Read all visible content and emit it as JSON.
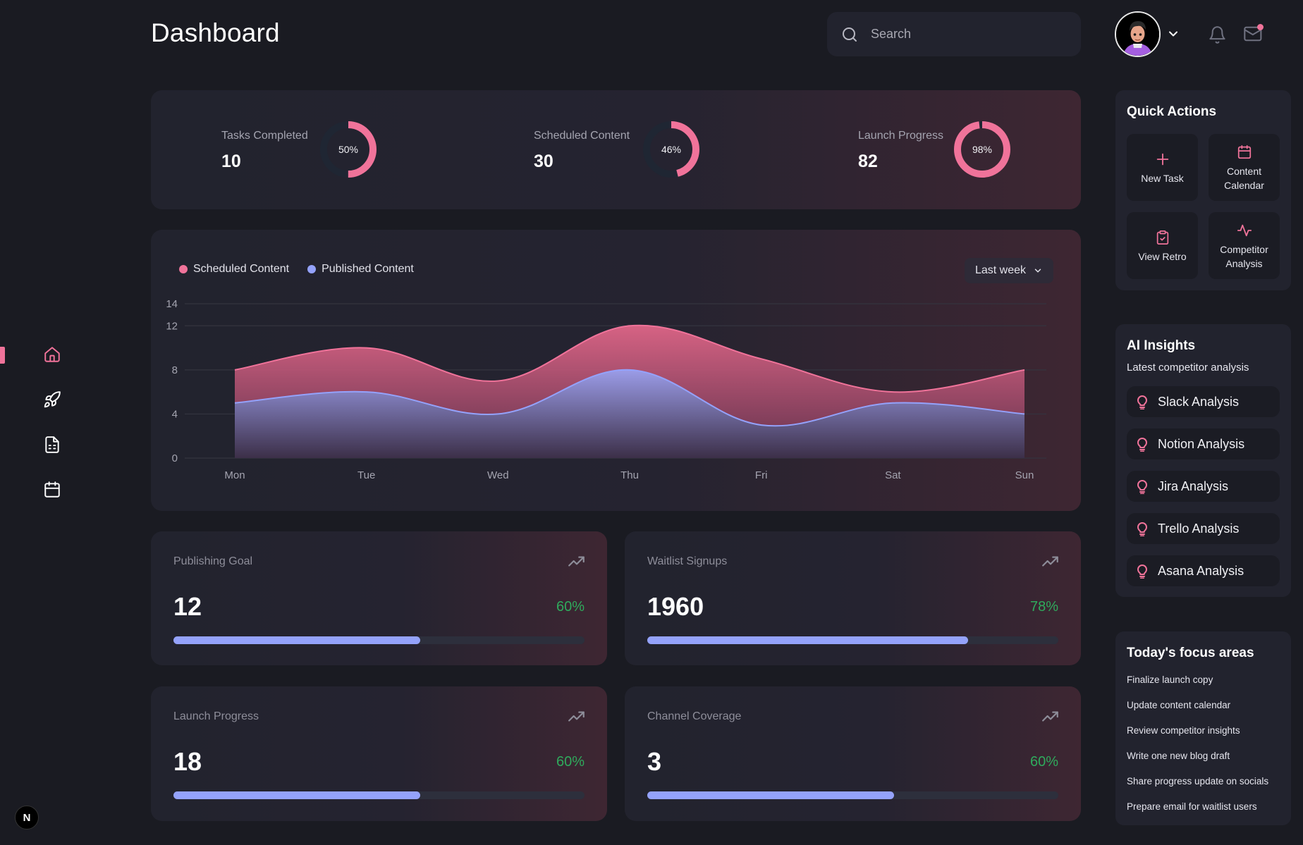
{
  "header": {
    "title": "Dashboard",
    "search_placeholder": "Search",
    "icons": [
      "search-icon",
      "chevron-down-icon",
      "bell-icon",
      "mail-icon"
    ],
    "notification_dot_color": "#f0739a"
  },
  "sidebar": {
    "items": [
      {
        "name": "home",
        "icon": "home-icon",
        "active": true
      },
      {
        "name": "launch",
        "icon": "rocket-icon",
        "active": false
      },
      {
        "name": "documents",
        "icon": "document-icon",
        "active": false
      },
      {
        "name": "calendar",
        "icon": "calendar-icon",
        "active": false
      }
    ],
    "footer_badge": "N"
  },
  "stats": [
    {
      "label": "Tasks Completed",
      "value": "10",
      "percent_label": "50%",
      "percent": 50
    },
    {
      "label": "Scheduled Content",
      "value": "30",
      "percent_label": "46%",
      "percent": 46
    },
    {
      "label": "Launch Progress",
      "value": "82",
      "percent_label": "98%",
      "percent": 98
    }
  ],
  "colors": {
    "accent_pink": "#f0739a",
    "accent_blue": "#94a2fb",
    "positive_green": "#2faa5c",
    "donut_track": "#1f2633"
  },
  "chart": {
    "range_label": "Last week"
  },
  "chart_data": {
    "type": "area",
    "title": "",
    "xlabel": "",
    "ylabel": "",
    "categories": [
      "Mon",
      "Tue",
      "Wed",
      "Thu",
      "Fri",
      "Sat",
      "Sun"
    ],
    "series": [
      {
        "name": "Scheduled Content",
        "color": "#f0739a",
        "values": [
          8,
          10,
          7,
          12,
          9,
          6,
          8
        ]
      },
      {
        "name": "Published Content",
        "color": "#94a2fb",
        "values": [
          5,
          6,
          4,
          8,
          3,
          5,
          4
        ]
      }
    ],
    "yticks": [
      0,
      4,
      8,
      12,
      14
    ],
    "ylim": [
      0,
      14
    ],
    "grid": true,
    "legend": "top-left"
  },
  "metrics": [
    {
      "label": "Publishing Goal",
      "value": "12",
      "percent_label": "60%",
      "progress": 0.6
    },
    {
      "label": "Waitlist Signups",
      "value": "1960",
      "percent_label": "78%",
      "progress": 0.78
    },
    {
      "label": "Launch Progress",
      "value": "18",
      "percent_label": "60%",
      "progress": 0.6
    },
    {
      "label": "Channel Coverage",
      "value": "3",
      "percent_label": "60%",
      "progress": 0.6
    }
  ],
  "quick_actions": {
    "title": "Quick Actions",
    "items": [
      {
        "label": "New Task",
        "icon": "plus-icon"
      },
      {
        "label": "Content Calendar",
        "icon": "calendar-icon"
      },
      {
        "label": "View Retro",
        "icon": "clipboard-check-icon"
      },
      {
        "label": "Competitor Analysis",
        "icon": "activity-icon"
      }
    ]
  },
  "ai_insights": {
    "title": "AI Insights",
    "subtitle": "Latest competitor analysis",
    "items": [
      {
        "label": "Slack Analysis"
      },
      {
        "label": "Notion Analysis"
      },
      {
        "label": "Jira Analysis"
      },
      {
        "label": "Trello Analysis"
      },
      {
        "label": "Asana Analysis"
      }
    ]
  },
  "focus": {
    "title": "Today's focus areas",
    "items": [
      "Finalize launch copy",
      "Update content calendar",
      "Review competitor insights",
      "Write one new blog draft",
      "Share progress update on socials",
      "Prepare email for waitlist users"
    ]
  }
}
